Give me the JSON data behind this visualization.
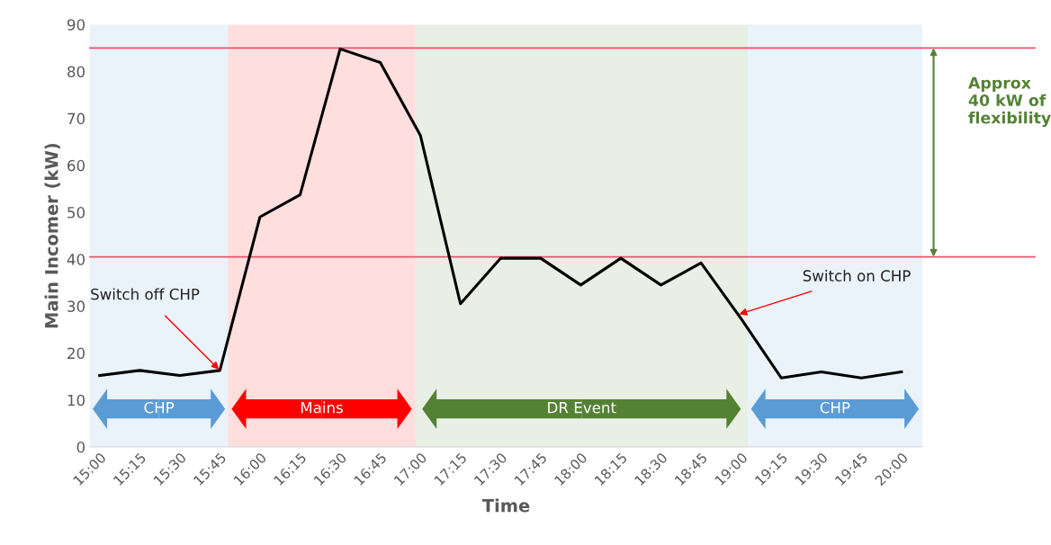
{
  "chart_data": {
    "type": "line",
    "xlabel": "Time",
    "ylabel": "Main Incomer (kW)",
    "x": [
      15,
      15.25,
      15.5,
      15.75,
      16,
      16.25,
      16.5,
      16.75,
      17,
      17.25,
      17.5,
      17.75,
      18,
      18.25,
      18.5,
      18.75,
      19,
      19.25,
      19.5,
      19.75,
      20
    ],
    "series": [
      {
        "color": "#000000",
        "values": [
          15.2,
          16.3,
          15.2,
          16.3,
          49,
          53.7,
          84.8,
          81.9,
          66.4,
          30.5,
          40.2,
          40.2,
          34.5,
          40.2,
          34.5,
          39.2,
          27.3,
          14.7,
          16,
          14.7,
          16
        ]
      }
    ],
    "xlim": [
      14.94,
      20.13
    ],
    "xticks": [
      {
        "value": 15,
        "label": "15:00"
      },
      {
        "value": 15.25,
        "label": "15:15"
      },
      {
        "value": 15.5,
        "label": "15:30"
      },
      {
        "value": 15.75,
        "label": "15:45"
      },
      {
        "value": 16,
        "label": "16:00"
      },
      {
        "value": 16.25,
        "label": "16:15"
      },
      {
        "value": 16.5,
        "label": "16:30"
      },
      {
        "value": 16.75,
        "label": "16:45"
      },
      {
        "value": 17,
        "label": "17:00"
      },
      {
        "value": 17.25,
        "label": "17:15"
      },
      {
        "value": 17.5,
        "label": "17:30"
      },
      {
        "value": 17.75,
        "label": "17:45"
      },
      {
        "value": 18,
        "label": "18:00"
      },
      {
        "value": 18.25,
        "label": "18:15"
      },
      {
        "value": 18.5,
        "label": "18:30"
      },
      {
        "value": 18.75,
        "label": "18:45"
      },
      {
        "value": 19,
        "label": "19:00"
      },
      {
        "value": 19.25,
        "label": "19:15"
      },
      {
        "value": 19.5,
        "label": "19:30"
      },
      {
        "value": 19.75,
        "label": "19:45"
      },
      {
        "value": 20,
        "label": "20:00"
      }
    ],
    "ylim": [
      0,
      90
    ],
    "yticks": [
      0,
      10,
      20,
      30,
      40,
      50,
      60,
      70,
      80,
      90
    ],
    "ref_lines": [
      {
        "axis": "y",
        "value": 85,
        "color": "#e8546e"
      },
      {
        "axis": "y",
        "value": 40.5,
        "color": "#e8546e"
      }
    ],
    "bands": [
      {
        "axis": "x",
        "from": 14.94,
        "to": 15.8,
        "label": "CHP",
        "color": "#5b9bd5"
      },
      {
        "axis": "x",
        "from": 15.8,
        "to": 16.97,
        "label": "Mains",
        "color": "#ff0000"
      },
      {
        "axis": "x",
        "from": 16.97,
        "to": 19.04,
        "label": "DR Event",
        "color": "#548235"
      },
      {
        "axis": "x",
        "from": 19.04,
        "to": 20.13,
        "label": "CHP",
        "color": "#5b9bd5"
      }
    ],
    "annotations": [
      {
        "text": "Switch off CHP",
        "x": 15.75,
        "y": 16.3
      },
      {
        "text": "Switch on CHP",
        "x": 18.98,
        "y": 28.2
      },
      "Approx 40 kW of flexibility"
    ],
    "grid": false,
    "legend": false,
    "marker": "none",
    "line_style": "solid"
  }
}
